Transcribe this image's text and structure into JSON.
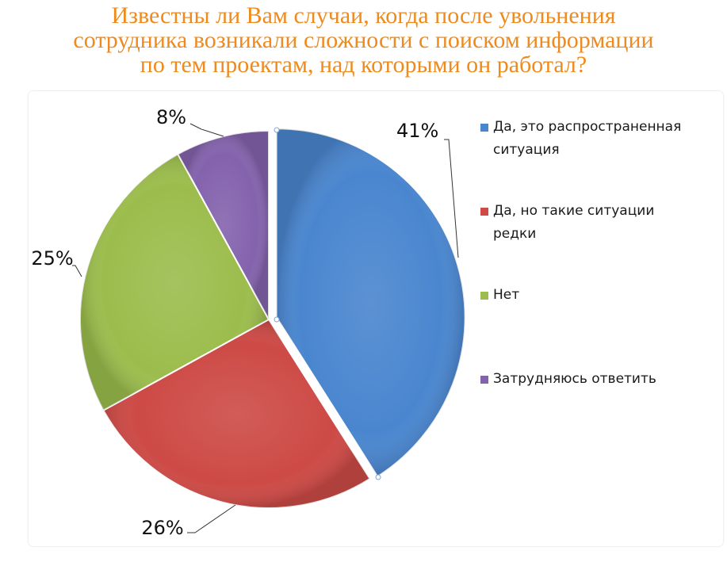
{
  "chart_data": {
    "type": "pie",
    "title_lines": [
      "Известны ли Вам случаи, когда после увольнения",
      "сотрудника возникали сложности с поиском информации",
      "по тем проектам, над которыми он работал?"
    ],
    "legend_position": "right",
    "slices": [
      {
        "label": "Да, это распространенная ситуация",
        "value": 41,
        "data_label": "41%",
        "color": "#4a86cf",
        "exploded": true
      },
      {
        "label": "Да, но такие ситуации редки",
        "value": 26,
        "data_label": "26%",
        "color": "#cd4a46",
        "exploded": false
      },
      {
        "label": "Нет",
        "value": 25,
        "data_label": "25%",
        "color": "#9cbd4d",
        "exploded": false
      },
      {
        "label": "Затрудняюсь ответить",
        "value": 8,
        "data_label": "8%",
        "color": "#8463ad",
        "exploded": false
      }
    ],
    "legend": [
      {
        "line1": "Да, это распространенная",
        "line2": "ситуация"
      },
      {
        "line1": "Да, но такие ситуации",
        "line2": "редки"
      },
      {
        "line1": "Нет",
        "line2": ""
      },
      {
        "line1": "Затрудняюсь ответить",
        "line2": ""
      }
    ]
  }
}
